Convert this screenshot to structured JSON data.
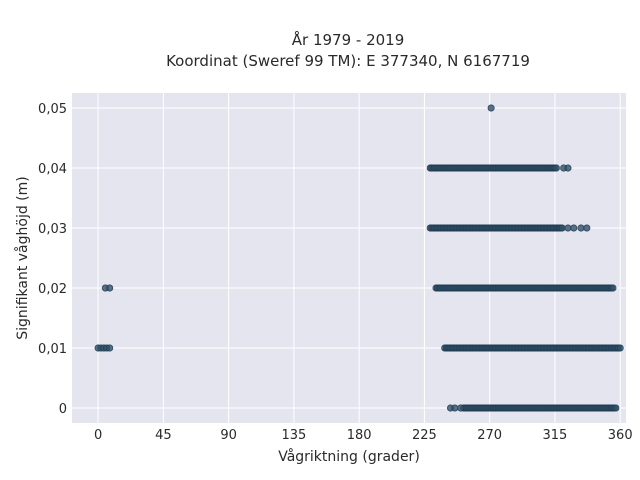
{
  "chart_data": {
    "type": "scatter",
    "title": [
      "År 1979 - 2019",
      "Koordinat (Sweref 99 TM): E 377340, N 6167719"
    ],
    "xlabel": "Vågriktning (grader)",
    "ylabel": "Signifikant våghöjd (m)",
    "xlim": [
      -18,
      364
    ],
    "ylim": [
      -0.0025,
      0.0525
    ],
    "x_ticks": [
      0,
      45,
      90,
      135,
      180,
      225,
      270,
      315,
      360
    ],
    "y_ticks": [
      0,
      0.01,
      0.02,
      0.03,
      0.04,
      0.05
    ],
    "y_tick_labels": [
      "0",
      "0,01",
      "0,02",
      "0,03",
      "0,04",
      "0,05"
    ],
    "grid": true,
    "colors": {
      "plot_bg": "#e5e5ef",
      "grid": "#ffffff",
      "marker": "#2e5068",
      "marker_edge": "#1f3a4f"
    },
    "series": [
      {
        "points": [
          [
            271,
            0.05
          ],
          [
            5,
            0.02
          ],
          [
            8,
            0.02
          ],
          [
            0,
            0.01
          ],
          [
            2,
            0.01
          ],
          [
            4,
            0.01
          ],
          [
            6,
            0.01
          ],
          [
            8,
            0.01
          ]
        ],
        "dense_ranges": [
          {
            "y": 0.04,
            "x": [
              229,
              316
            ],
            "sparse": [
              321,
              324
            ]
          },
          {
            "y": 0.03,
            "x": [
              229,
              320
            ],
            "sparse": [
              324,
              328,
              333,
              337
            ]
          },
          {
            "y": 0.02,
            "x": [
              233,
              355
            ]
          },
          {
            "y": 0.01,
            "x": [
              239,
              360
            ]
          },
          {
            "y": 0.0,
            "x": [
              252,
              357
            ],
            "sparse": [
              243,
              246,
              250
            ]
          }
        ]
      }
    ]
  }
}
